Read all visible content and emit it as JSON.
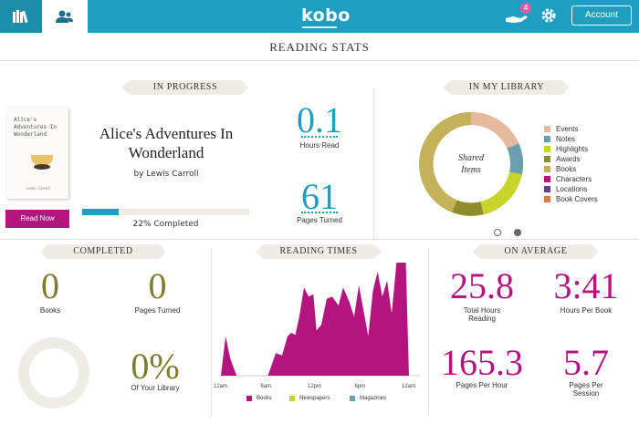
{
  "header": {
    "logo": "kobo",
    "notification_count": "4",
    "account_label": "Account",
    "accent_color": "#1f9fbf"
  },
  "page_title": "READING STATS",
  "in_progress": {
    "section_label": "IN PROGRESS",
    "book": {
      "cover_title": "Alice's Adventures In Wonderland",
      "cover_author": "Lewis Carroll",
      "title": "Alice's Adventures In Wonderland",
      "author": "by Lewis Carroll"
    },
    "read_now_label": "Read Now",
    "progress_fraction": 0.22,
    "progress_text": "22% Completed",
    "hours_read": "0.1",
    "hours_read_label": "Hours Read",
    "pages_turned": "61",
    "pages_turned_label": "Pages Turned"
  },
  "library": {
    "section_label": "IN MY LIBRARY",
    "donut_label": "Shared Items",
    "legend": [
      {
        "label": "Events",
        "color": "#e6b89f"
      },
      {
        "label": "Notes",
        "color": "#6a9fb0"
      },
      {
        "label": "Highlights",
        "color": "#c9d42a"
      },
      {
        "label": "Awards",
        "color": "#8e8c2a"
      },
      {
        "label": "Books",
        "color": "#c4b25a"
      },
      {
        "label": "Characters",
        "color": "#b5147e"
      },
      {
        "label": "Locations",
        "color": "#6b3d8a"
      },
      {
        "label": "Book Covers",
        "color": "#e0793b"
      }
    ],
    "pager": {
      "active": 2,
      "total": 2
    }
  },
  "completed": {
    "section_label": "COMPLETED",
    "books": "0",
    "books_label": "Books",
    "pages_turned": "0",
    "pages_turned_label": "Pages Turned",
    "percent": "0%",
    "percent_label": "Of Your Library"
  },
  "reading_times": {
    "section_label": "READING TIMES"
  },
  "on_average": {
    "section_label": "ON AVERAGE",
    "total_hours": "25.8",
    "total_hours_label": "Total Hours Reading",
    "hours_per_book": "3:41",
    "hours_per_book_label": "Hours Per Book",
    "pages_per_hour": "165.3",
    "pages_per_hour_label": "Pages Per Hour",
    "pages_per_session": "5.7",
    "pages_per_session_label": "Pages Per Session"
  },
  "chart_data": {
    "type": "area",
    "x_ticks": [
      "12am",
      "6am",
      "12pm",
      "6pm",
      "12am"
    ],
    "legend": [
      {
        "name": "Books",
        "color": "#b5147e"
      },
      {
        "name": "Newspapers",
        "color": "#c9d42a"
      },
      {
        "name": "Magazines",
        "color": "#6a9fb0"
      }
    ],
    "series": [
      {
        "name": "Books",
        "x_hours": [
          0,
          0.6,
          1.2,
          2.0,
          2.6,
          6,
          7,
          7.8,
          8.5,
          9,
          9.5,
          10,
          10.6,
          11.2,
          11.8,
          12.2,
          12.8,
          13.5,
          14.2,
          15,
          15.6,
          16.4,
          17,
          17.6,
          18.2,
          18.8,
          19.4,
          20,
          20.6,
          21.2,
          21.8,
          22.4,
          23,
          23.6,
          24
        ],
        "values": [
          0,
          35,
          15,
          0,
          0,
          0,
          20,
          18,
          35,
          38,
          36,
          52,
          78,
          70,
          72,
          40,
          45,
          68,
          70,
          62,
          78,
          65,
          52,
          80,
          58,
          35,
          75,
          92,
          70,
          84,
          55,
          100,
          100,
          100,
          0
        ]
      }
    ],
    "ylim": [
      0,
      100
    ]
  }
}
